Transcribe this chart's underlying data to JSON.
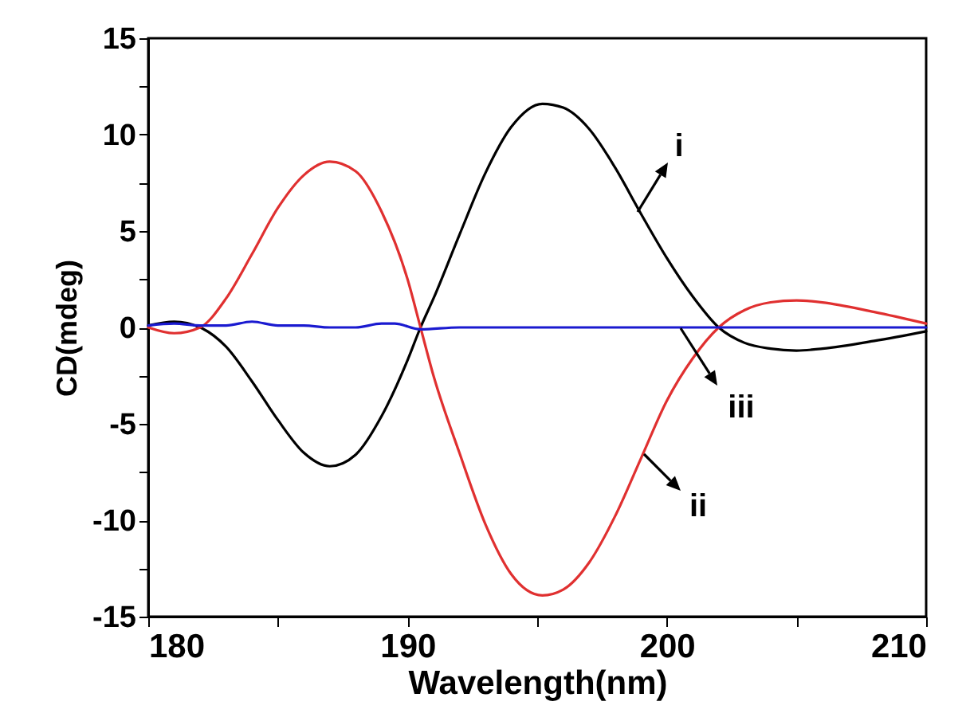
{
  "chart_data": {
    "type": "line",
    "xlabel": "Wavelength(nm)",
    "ylabel": "CD(mdeg)",
    "xlim": [
      180,
      210
    ],
    "ylim": [
      -15,
      15
    ],
    "xticks": [
      180,
      {
        "value": 185,
        "label": null
      },
      190,
      {
        "value": 195,
        "label": null
      },
      200,
      {
        "value": 205,
        "label": null
      },
      210
    ],
    "yticks": [
      -15,
      {
        "value": -12.5,
        "label": null
      },
      -10,
      {
        "value": -7.5,
        "label": null
      },
      -5,
      {
        "value": -2.5,
        "label": null
      },
      0,
      {
        "value": 2.5,
        "label": null
      },
      5,
      {
        "value": 7.5,
        "label": null
      },
      10,
      {
        "value": 12.5,
        "label": null
      },
      15
    ],
    "grid": false,
    "legend": false,
    "line_style": "solid",
    "marker": "none",
    "series": [
      {
        "color": "#000000",
        "x": [
          180,
          181,
          182,
          183,
          184,
          185,
          186,
          187,
          188,
          189,
          190,
          190.5,
          191,
          192,
          193,
          194,
          195.2,
          196,
          197,
          198,
          199,
          200,
          201,
          202,
          203,
          204,
          205,
          206,
          208,
          210
        ],
        "values": [
          0.1,
          0.3,
          0,
          -1.0,
          -2.8,
          -4.8,
          -6.5,
          -7.2,
          -6.6,
          -4.6,
          -1.7,
          0,
          1.5,
          4.8,
          8.0,
          10.4,
          11.6,
          11.4,
          10.3,
          8.3,
          5.9,
          3.6,
          1.6,
          0,
          -0.8,
          -1.1,
          -1.2,
          -1.1,
          -0.7,
          -0.2
        ]
      },
      {
        "color": "#e03030",
        "x": [
          180,
          181,
          182,
          183,
          184,
          185,
          186,
          187,
          188,
          189,
          190,
          190.5,
          191,
          192,
          193,
          194,
          195.2,
          196,
          197,
          198,
          199,
          200,
          201,
          202,
          203,
          204,
          205,
          206,
          208,
          210
        ],
        "values": [
          0,
          -0.3,
          0,
          1.5,
          3.8,
          6.2,
          7.9,
          8.6,
          8.1,
          6.0,
          2.5,
          0,
          -2.5,
          -6.5,
          -10.2,
          -12.8,
          -13.9,
          -13.6,
          -12.2,
          -9.8,
          -6.8,
          -3.8,
          -1.6,
          0,
          0.9,
          1.3,
          1.4,
          1.3,
          0.8,
          0.2
        ]
      },
      {
        "color": "#1a1ad0",
        "x": [
          180,
          181,
          182,
          183,
          184,
          185,
          186,
          187,
          188,
          189,
          189.5,
          190.5,
          192,
          195,
          200,
          205,
          210
        ],
        "values": [
          0.1,
          0.2,
          0.1,
          0.1,
          0.3,
          0.1,
          0.1,
          0,
          0,
          0.2,
          0.2,
          -0.1,
          0,
          0,
          0,
          0,
          0
        ]
      }
    ],
    "annotations": [
      "i",
      "ii",
      "iii"
    ]
  }
}
